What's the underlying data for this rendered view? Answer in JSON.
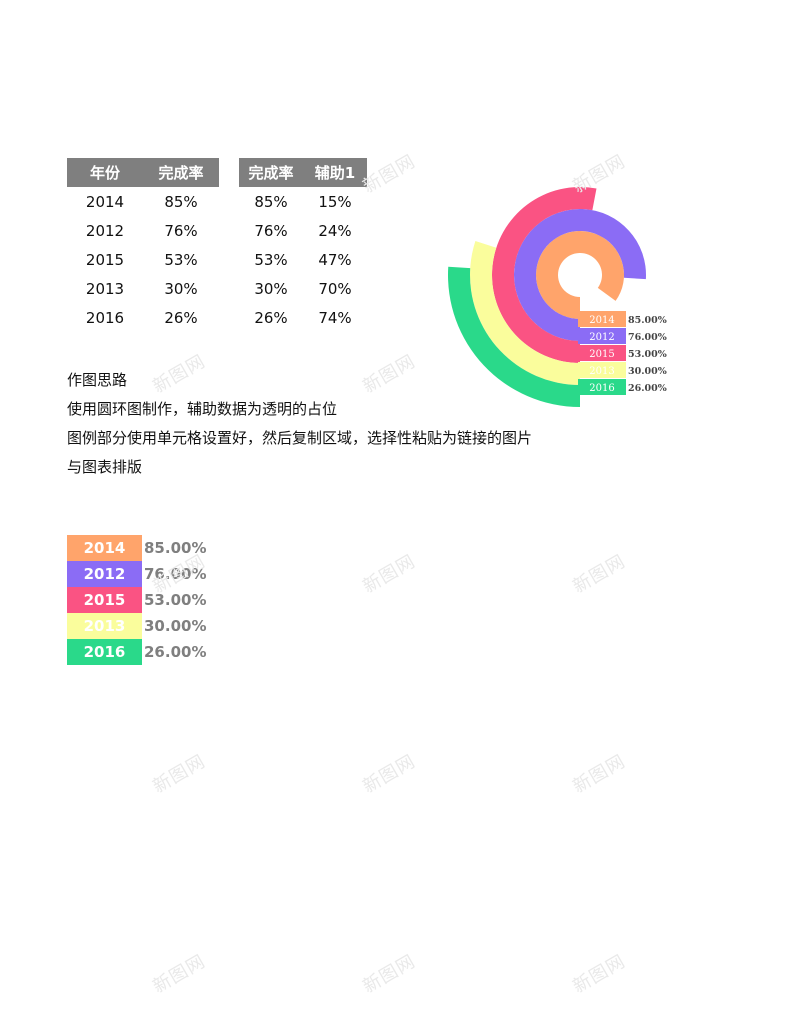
{
  "table1": {
    "headers": [
      "年份",
      "完成率"
    ],
    "rows": [
      [
        "2014",
        "85%"
      ],
      [
        "2012",
        "76%"
      ],
      [
        "2015",
        "53%"
      ],
      [
        "2013",
        "30%"
      ],
      [
        "2016",
        "26%"
      ]
    ]
  },
  "table2": {
    "headers": [
      "完成率",
      "辅助1"
    ],
    "rows": [
      [
        "85%",
        "15%"
      ],
      [
        "76%",
        "24%"
      ],
      [
        "53%",
        "47%"
      ],
      [
        "30%",
        "70%"
      ],
      [
        "26%",
        "74%"
      ]
    ]
  },
  "notes": [
    "作图思路",
    "使用圆环图制作，辅助数据为透明的占位",
    "图例部分使用单元格设置好，然后复制区域，选择性粘贴为链接的图片",
    "与图表排版"
  ],
  "legend": [
    {
      "label": "2014",
      "value": "85.00%",
      "color": "#ffa46b"
    },
    {
      "label": "2012",
      "value": "76.00%",
      "color": "#8b6cf5"
    },
    {
      "label": "2015",
      "value": "53.00%",
      "color": "#fa5383"
    },
    {
      "label": "2013",
      "value": "30.00%",
      "color": "#fafd9c"
    },
    {
      "label": "2016",
      "value": "26.00%",
      "color": "#2ad98a"
    }
  ],
  "chart_data": {
    "type": "doughnut",
    "categories": [
      "2014",
      "2012",
      "2015",
      "2013",
      "2016"
    ],
    "series": [
      {
        "values": [
          0.85,
          0.76,
          0.53,
          0.3,
          0.26
        ]
      },
      {
        "name": "辅助1",
        "values": [
          0.15,
          0.24,
          0.47,
          0.7,
          0.74
        ]
      }
    ],
    "colors": [
      "#ffa46b",
      "#8b6cf5",
      "#fa5383",
      "#fafd9c",
      "#2ad98a"
    ],
    "legend": [
      {
        "label": "2014",
        "value": "85.00%"
      },
      {
        "label": "2012",
        "value": "76.00%"
      },
      {
        "label": "2015",
        "value": "53.00%"
      },
      {
        "label": "2013",
        "value": "30.00%"
      },
      {
        "label": "2016",
        "value": "26.00%"
      }
    ]
  },
  "watermark": "新图网"
}
